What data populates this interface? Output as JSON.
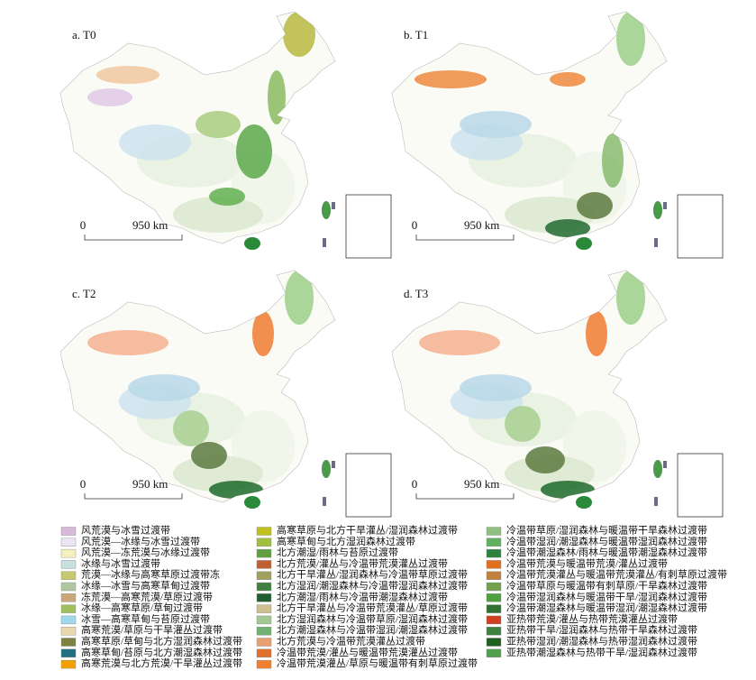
{
  "panels": [
    {
      "label": "a. T0",
      "scale": [
        "0",
        "950 km"
      ]
    },
    {
      "label": "b. T1",
      "scale": [
        "0",
        "950 km"
      ]
    },
    {
      "label": "c. T2",
      "scale": [
        "0",
        "950 km"
      ]
    },
    {
      "label": "d. T3",
      "scale": [
        "0",
        "950 km"
      ]
    }
  ],
  "legend": {
    "columns": [
      [
        {
          "label": "风荒漠与冰雪过渡带",
          "color": "#d9b8d9"
        },
        {
          "label": "风荒漠—冰缘与冰雪过渡带",
          "color": "#ece4f2"
        },
        {
          "label": "风荒漠—冻荒漠与冰缘过渡带",
          "color": "#f5f0c0"
        },
        {
          "label": "冰缘与冰雪过渡带",
          "color": "#c8e0e0"
        },
        {
          "label": "荒漠—冰缘与高寒草原过渡带冻",
          "color": "#c8c870"
        },
        {
          "label": "冰缘—冰雪与高寒草甸过渡带",
          "color": "#b0c8a0"
        },
        {
          "label": "冻荒漠—高寒荒漠/草原过渡带",
          "color": "#c8a878"
        },
        {
          "label": "冰缘—高寒草原/草甸过渡带",
          "color": "#a0c060"
        },
        {
          "label": "冰雪—高寒草甸与苔原过渡带",
          "color": "#a0d8f0"
        },
        {
          "label": "高寒荒漠/草原与干旱灌丛过渡带",
          "color": "#e8d8b0"
        },
        {
          "label": "高寒草原/草甸与北方湿润森林过渡带",
          "color": "#808040"
        },
        {
          "label": "高寒草甸/苔原与北方潮湿森林过渡带",
          "color": "#207080"
        },
        {
          "label": "高寒荒漠与北方荒漠/干旱灌丛过渡带",
          "color": "#f0a000"
        }
      ],
      [
        {
          "label": "高寒草原与北方干旱灌丛/湿润森林过渡带",
          "color": "#c0c020"
        },
        {
          "label": "高寒草甸与北方湿润森林过渡带",
          "color": "#a0c040"
        },
        {
          "label": "北方潮湿/雨林与苔原过渡带",
          "color": "#60a040"
        },
        {
          "label": "北方荒漠/灌丛与冷温带荒漠灌丛过渡带",
          "color": "#c06030"
        },
        {
          "label": "北方干旱灌丛/湿润森林与冷温带草原过渡带",
          "color": "#a0a060"
        },
        {
          "label": "北方湿润/潮湿森林与冷温带湿润森林过渡带",
          "color": "#408040"
        },
        {
          "label": "北方潮湿/雨林与冷温带潮湿森林过渡带",
          "color": "#206030"
        },
        {
          "label": "北方干旱灌丛与冷温带荒漠灌丛/草原过渡带",
          "color": "#d0c090"
        },
        {
          "label": "北方湿润森林与冷温带草原/湿润森林过渡带",
          "color": "#a0c890"
        },
        {
          "label": "北方潮湿森林与冷温带湿润/潮湿森林过渡带",
          "color": "#70b070"
        },
        {
          "label": "北方荒漠与冷温带荒漠灌丛过渡带",
          "color": "#e8a070"
        },
        {
          "label": "冷温带荒漠/灌丛与暖温带荒漠灌丛过渡带",
          "color": "#e07030"
        },
        {
          "label": "冷温带荒漠灌丛/草原与暖温带有刺草原过渡带",
          "color": "#f08030"
        }
      ],
      [
        {
          "label": "冷温带草原/湿润森林与暖温带干旱森林过渡带",
          "color": "#90c080"
        },
        {
          "label": "冷温带湿润/潮湿森林与暖温带湿润森林过渡带",
          "color": "#60b060"
        },
        {
          "label": "冷温带潮湿森林/雨林与暖温带潮湿森林过渡带",
          "color": "#308040"
        },
        {
          "label": "冷温带荒漠与暖温带荒漠/灌丛过渡带",
          "color": "#e07020"
        },
        {
          "label": "冷温带荒漠灌丛与暖温带荒漠灌丛/有刺草原过渡带",
          "color": "#c08040"
        },
        {
          "label": "冷温带草原与暖温带有刺草原/干旱森林过渡带",
          "color": "#70a050"
        },
        {
          "label": "冷温带湿润森林与暖温带干旱/湿润森林过渡带",
          "color": "#50a040"
        },
        {
          "label": "冷温带潮湿森林与暖温带湿润/潮湿森林过渡带",
          "color": "#307030"
        },
        {
          "label": "亚热带荒漠/灌丛与热带荒漠灌丛过渡带",
          "color": "#d04020"
        },
        {
          "label": "亚热带干旱/湿润森林与热带干旱森林过渡带",
          "color": "#408040"
        },
        {
          "label": "亚热带湿润/潮湿森林与热带湿润森林过渡带",
          "color": "#206020"
        },
        {
          "label": "亚热带潮湿森林与热带干旱/湿润森林过渡带",
          "color": "#50a050"
        }
      ]
    ]
  }
}
